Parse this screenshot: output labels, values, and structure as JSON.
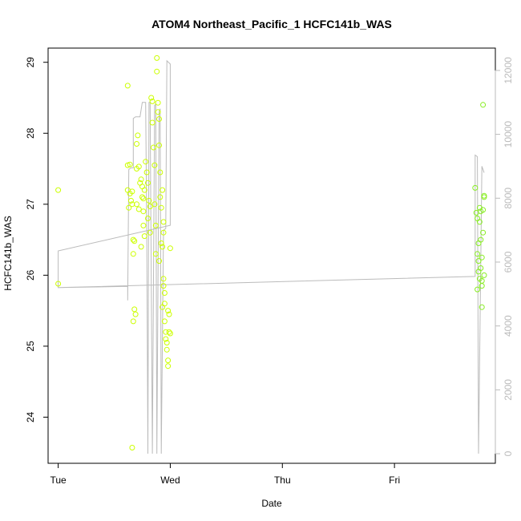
{
  "chart_data": {
    "type": "scatter",
    "title": "ATOM4 Northeast_Pacific_1 HCFC141b_WAS",
    "xlabel": "Date",
    "ylabel": "HCFC141b_WAS",
    "x_ticks": [
      "Tue",
      "Wed",
      "Thu",
      "Fri"
    ],
    "y_ticks": [
      24,
      25,
      26,
      27,
      28,
      29
    ],
    "y2_ticks": [
      0,
      2000,
      4000,
      6000,
      8000,
      10000,
      12000
    ],
    "xlim_days": [
      -0.09,
      3.9
    ],
    "ylim": [
      23.35,
      29.2
    ],
    "y2lim": [
      -300,
      12700
    ],
    "colors": {
      "points_a": "#ccff00",
      "points_b": "#88ee22",
      "line": "#bbbbbb",
      "axis": "#000000",
      "axis_right": "#bbbbbb"
    },
    "series": [
      {
        "color_key": "points_a",
        "points": [
          [
            0.0,
            27.2
          ],
          [
            0.0,
            25.88
          ],
          [
            0.62,
            28.67
          ],
          [
            0.62,
            27.55
          ],
          [
            0.64,
            27.56
          ],
          [
            0.62,
            27.2
          ],
          [
            0.63,
            26.95
          ],
          [
            0.64,
            27.15
          ],
          [
            0.65,
            27.05
          ],
          [
            0.66,
            27.0
          ],
          [
            0.66,
            27.18
          ],
          [
            0.67,
            26.5
          ],
          [
            0.68,
            26.48
          ],
          [
            0.67,
            26.3
          ],
          [
            0.68,
            25.52
          ],
          [
            0.67,
            25.35
          ],
          [
            0.69,
            25.45
          ],
          [
            0.66,
            23.57
          ],
          [
            0.7,
            27.85
          ],
          [
            0.71,
            27.97
          ],
          [
            0.7,
            27.5
          ],
          [
            0.72,
            27.53
          ],
          [
            0.7,
            27.0
          ],
          [
            0.72,
            26.93
          ],
          [
            0.73,
            27.3
          ],
          [
            0.74,
            27.35
          ],
          [
            0.75,
            27.25
          ],
          [
            0.75,
            27.1
          ],
          [
            0.76,
            27.08
          ],
          [
            0.76,
            26.7
          ],
          [
            0.77,
            26.55
          ],
          [
            0.74,
            26.4
          ],
          [
            0.78,
            27.6
          ],
          [
            0.79,
            27.45
          ],
          [
            0.8,
            27.3
          ],
          [
            0.81,
            27.05
          ],
          [
            0.82,
            26.97
          ],
          [
            0.8,
            26.8
          ],
          [
            0.82,
            26.6
          ],
          [
            0.83,
            28.5
          ],
          [
            0.84,
            28.45
          ],
          [
            0.84,
            28.15
          ],
          [
            0.85,
            27.8
          ],
          [
            0.86,
            27.55
          ],
          [
            0.86,
            27.0
          ],
          [
            0.87,
            26.7
          ],
          [
            0.87,
            26.3
          ],
          [
            0.88,
            29.06
          ],
          [
            0.88,
            28.87
          ],
          [
            0.89,
            28.43
          ],
          [
            0.89,
            28.3
          ],
          [
            0.9,
            28.2
          ],
          [
            0.9,
            27.83
          ],
          [
            0.91,
            27.45
          ],
          [
            0.91,
            27.1
          ],
          [
            0.92,
            26.95
          ],
          [
            0.92,
            26.45
          ],
          [
            0.93,
            26.4
          ],
          [
            0.9,
            26.2
          ],
          [
            0.94,
            25.95
          ],
          [
            0.94,
            25.85
          ],
          [
            0.95,
            25.75
          ],
          [
            0.95,
            25.6
          ],
          [
            0.93,
            25.55
          ],
          [
            0.95,
            25.35
          ],
          [
            0.96,
            25.2
          ],
          [
            0.96,
            25.1
          ],
          [
            0.97,
            25.05
          ],
          [
            0.98,
            25.5
          ],
          [
            0.99,
            25.45
          ],
          [
            0.99,
            25.2
          ],
          [
            1.0,
            25.18
          ],
          [
            0.97,
            24.95
          ],
          [
            0.98,
            24.8
          ],
          [
            0.98,
            24.72
          ],
          [
            1.0,
            26.38
          ],
          [
            0.94,
            26.75
          ],
          [
            0.93,
            27.2
          ],
          [
            0.94,
            26.6
          ],
          [
            0.77,
            27.2
          ],
          [
            0.76,
            26.9
          ]
        ]
      },
      {
        "color_key": "points_b",
        "points": [
          [
            3.72,
            27.23
          ],
          [
            3.73,
            26.88
          ],
          [
            3.74,
            26.8
          ],
          [
            3.74,
            26.3
          ],
          [
            3.75,
            26.45
          ],
          [
            3.75,
            26.2
          ],
          [
            3.76,
            26.95
          ],
          [
            3.76,
            26.75
          ],
          [
            3.77,
            26.9
          ],
          [
            3.77,
            26.5
          ],
          [
            3.77,
            26.1
          ],
          [
            3.78,
            25.92
          ],
          [
            3.78,
            25.85
          ],
          [
            3.76,
            25.95
          ],
          [
            3.79,
            26.92
          ],
          [
            3.79,
            26.6
          ],
          [
            3.8,
            27.12
          ],
          [
            3.8,
            27.1
          ],
          [
            3.8,
            26.0
          ],
          [
            3.78,
            25.55
          ],
          [
            3.79,
            28.4
          ],
          [
            3.74,
            25.8
          ],
          [
            3.75,
            26.05
          ],
          [
            3.78,
            26.25
          ]
        ]
      }
    ],
    "line_series": {
      "axis": "right",
      "points": [
        [
          0.0,
          6350
        ],
        [
          0.0,
          5200
        ],
        [
          0.62,
          5240
        ],
        [
          0.62,
          4800
        ],
        [
          0.63,
          8900
        ],
        [
          0.65,
          8950
        ],
        [
          0.67,
          8950
        ],
        [
          0.67,
          10500
        ],
        [
          0.69,
          10550
        ],
        [
          0.73,
          10550
        ],
        [
          0.75,
          11000
        ],
        [
          0.78,
          11000
        ],
        [
          0.79,
          6950
        ],
        [
          0.8,
          0
        ],
        [
          0.81,
          11000
        ],
        [
          0.82,
          11000
        ],
        [
          0.84,
          0
        ],
        [
          0.86,
          10900
        ],
        [
          0.87,
          10950
        ],
        [
          0.88,
          0
        ],
        [
          0.9,
          10700
        ],
        [
          0.91,
          10800
        ],
        [
          0.92,
          0
        ],
        [
          0.94,
          7000
        ],
        [
          0.96,
          7050
        ],
        [
          0.97,
          12300
        ],
        [
          1.0,
          12200
        ],
        [
          1.0,
          7150
        ],
        [
          0.0,
          6350
        ],
        [
          0.0,
          5200
        ],
        [
          3.72,
          5550
        ],
        [
          3.72,
          9350
        ],
        [
          3.74,
          9300
        ],
        [
          3.75,
          0
        ],
        [
          3.78,
          9000
        ],
        [
          3.8,
          8800
        ]
      ]
    }
  }
}
